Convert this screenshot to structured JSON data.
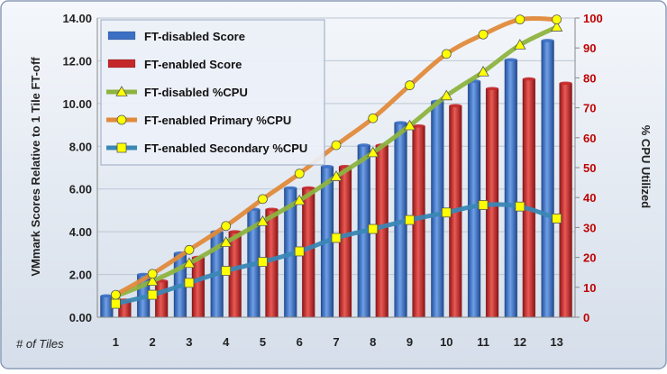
{
  "chart_data": {
    "type": "bar",
    "categories": [
      "1",
      "2",
      "3",
      "4",
      "5",
      "6",
      "7",
      "8",
      "9",
      "10",
      "11",
      "12",
      "13"
    ],
    "xlabel": "# of Tiles",
    "ylabel": "VMmark Scores Relative to 1 Tile FT-off",
    "ylabel2": "% CPU Utilized",
    "ylim": [
      0,
      14
    ],
    "yticks": [
      "0.00",
      "2.00",
      "4.00",
      "6.00",
      "8.00",
      "10.00",
      "12.00",
      "14.00"
    ],
    "ylim2": [
      0,
      100
    ],
    "yticks2": [
      "0",
      "10",
      "20",
      "30",
      "40",
      "50",
      "60",
      "70",
      "80",
      "90",
      "100"
    ],
    "grid": true,
    "legend_position": "top-left",
    "series": [
      {
        "name": "FT-disabled Score",
        "type": "bar",
        "axis": "left",
        "color": "#3b6fc4",
        "values": [
          1.0,
          2.0,
          3.0,
          4.0,
          5.05,
          6.05,
          7.05,
          8.05,
          9.1,
          10.1,
          11.05,
          12.05,
          12.95
        ]
      },
      {
        "name": "FT-enabled Score",
        "type": "bar",
        "axis": "left",
        "color": "#c4282a",
        "values": [
          0.8,
          1.7,
          2.8,
          4.0,
          5.05,
          6.05,
          7.05,
          8.05,
          8.95,
          9.9,
          10.7,
          11.15,
          10.95
        ]
      },
      {
        "name": "FT-disabled %CPU",
        "type": "line",
        "axis": "right",
        "color": "#8db33f",
        "marker": "triangle",
        "values": [
          7,
          12,
          18,
          25,
          32,
          39,
          47,
          55,
          64,
          74,
          82,
          91,
          97
        ]
      },
      {
        "name": "FT-enabled Primary %CPU",
        "type": "line",
        "axis": "right",
        "color": "#e08a3a",
        "marker": "circle",
        "values": [
          7.5,
          14.5,
          22.5,
          30.5,
          39.5,
          48,
          57.5,
          66.5,
          77.5,
          88,
          94.5,
          99.5,
          99.5
        ]
      },
      {
        "name": "FT-enabled Secondary %CPU",
        "type": "line",
        "axis": "right",
        "color": "#3a87b5",
        "marker": "square",
        "values": [
          4.5,
          7.5,
          11.5,
          15.5,
          18.5,
          22,
          26.5,
          29.5,
          32.5,
          35,
          37.5,
          37,
          33
        ]
      }
    ],
    "colors": {
      "background": "#dfe6f0",
      "border": "#8a9bb8",
      "grid": "#bcc6d6",
      "right_axis_text": "#c00000",
      "marker_fill": "#ffff00"
    }
  }
}
